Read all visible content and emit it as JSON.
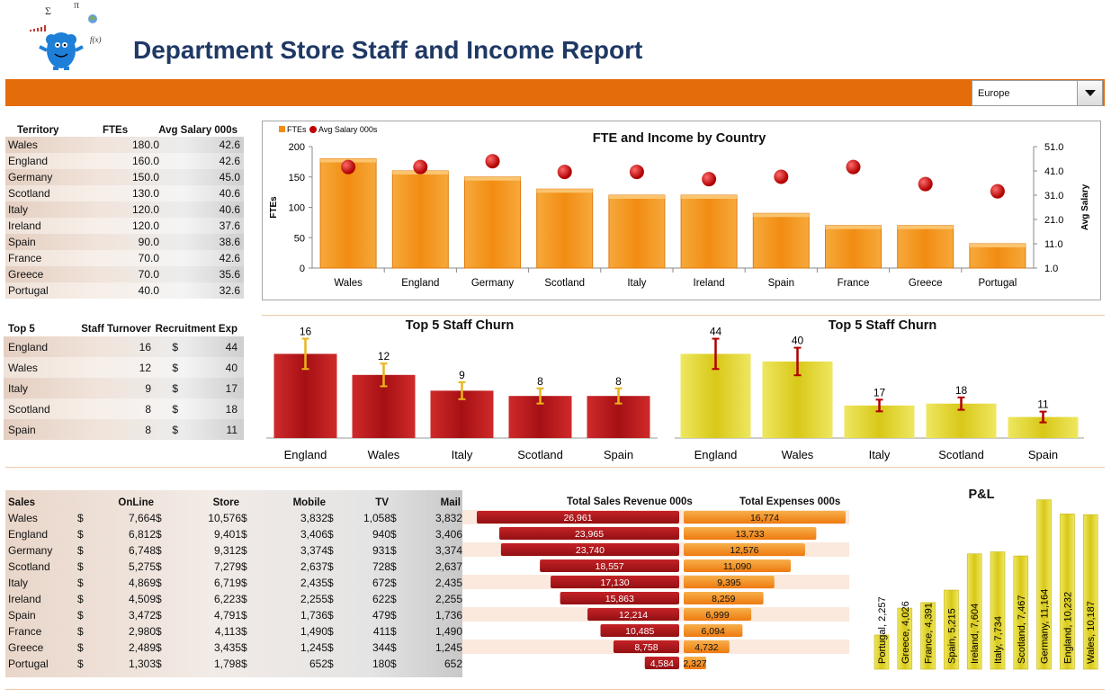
{
  "header": {
    "title": "Department Store Staff and Income Report"
  },
  "filter": {
    "selected": "Europe"
  },
  "territory_table": {
    "headers": [
      "Territory",
      "FTEs",
      "Avg Salary 000s"
    ],
    "rows": [
      [
        "Wales",
        "180.0",
        "42.6"
      ],
      [
        "England",
        "160.0",
        "42.6"
      ],
      [
        "Germany",
        "150.0",
        "45.0"
      ],
      [
        "Scotland",
        "130.0",
        "40.6"
      ],
      [
        "Italy",
        "120.0",
        "40.6"
      ],
      [
        "Ireland",
        "120.0",
        "37.6"
      ],
      [
        "Spain",
        "90.0",
        "38.6"
      ],
      [
        "France",
        "70.0",
        "42.6"
      ],
      [
        "Greece",
        "70.0",
        "35.6"
      ],
      [
        "Portugal",
        "40.0",
        "32.6"
      ]
    ]
  },
  "top5_table": {
    "headers": [
      "Top 5",
      "Staff Turnover",
      "Recruitment Exp"
    ],
    "currency": "$",
    "rows": [
      [
        "England",
        "16",
        "44"
      ],
      [
        "Wales",
        "12",
        "40"
      ],
      [
        "Italy",
        "9",
        "17"
      ],
      [
        "Scotland",
        "8",
        "18"
      ],
      [
        "Spain",
        "8",
        "11"
      ]
    ]
  },
  "sales_table": {
    "headers": [
      "Sales",
      "OnLine",
      "Store",
      "Mobile",
      "TV",
      "Mail"
    ],
    "currency": "$",
    "rows": [
      [
        "Wales",
        "7,664",
        "10,576",
        "3,832",
        "1,058",
        "3,832"
      ],
      [
        "England",
        "6,812",
        "9,401",
        "3,406",
        "940",
        "3,406"
      ],
      [
        "Germany",
        "6,748",
        "9,312",
        "3,374",
        "931",
        "3,374"
      ],
      [
        "Scotland",
        "5,275",
        "7,279",
        "2,637",
        "728",
        "2,637"
      ],
      [
        "Italy",
        "4,869",
        "6,719",
        "2,435",
        "672",
        "2,435"
      ],
      [
        "Ireland",
        "4,509",
        "6,223",
        "2,255",
        "622",
        "2,255"
      ],
      [
        "Spain",
        "3,472",
        "4,791",
        "1,736",
        "479",
        "1,736"
      ],
      [
        "France",
        "2,980",
        "4,113",
        "1,490",
        "411",
        "1,490"
      ],
      [
        "Greece",
        "2,489",
        "3,435",
        "1,245",
        "344",
        "1,245"
      ],
      [
        "Portugal",
        "1,303",
        "1,798",
        "652",
        "180",
        "652"
      ]
    ]
  },
  "colors": {
    "banner": "#e46c0a",
    "title": "#1f3864",
    "orange_bar": "#f08a10",
    "red_bar": "#b0141a",
    "yellow_bar": "#e0d020"
  },
  "chart_data": [
    {
      "type": "bar",
      "title": "FTE and  Income by Country",
      "legend": [
        "FTEs",
        "Avg Salary 000s"
      ],
      "legend_position": "top-left",
      "categories": [
        "Wales",
        "England",
        "Germany",
        "Scotland",
        "Italy",
        "Ireland",
        "Spain",
        "France",
        "Greece",
        "Portugal"
      ],
      "series": [
        {
          "name": "FTEs",
          "type": "bar",
          "axis": "left",
          "values": [
            180,
            160,
            150,
            130,
            120,
            120,
            90,
            70,
            70,
            40
          ]
        },
        {
          "name": "Avg Salary 000s",
          "type": "scatter",
          "axis": "right",
          "values": [
            42.6,
            42.6,
            45.0,
            40.6,
            40.6,
            37.6,
            38.6,
            42.6,
            35.6,
            32.6
          ]
        }
      ],
      "ylabel": "FTEs",
      "y2label": "Avg Salary",
      "yticks": [
        "0",
        "50",
        "100",
        "150",
        "200"
      ],
      "y2ticks": [
        "1.0",
        "11.0",
        "21.0",
        "31.0",
        "41.0",
        "51.0"
      ],
      "ylim": [
        0,
        200
      ],
      "y2lim": [
        1,
        51
      ],
      "grid": false
    },
    {
      "type": "bar",
      "title": "Top 5 Staff Churn",
      "categories": [
        "England",
        "Wales",
        "Italy",
        "Scotland",
        "Spain"
      ],
      "values": [
        16,
        12,
        9,
        8,
        8
      ],
      "data_labels": [
        "16",
        "12",
        "9",
        "8",
        "8"
      ],
      "error_bars": true,
      "ylim": [
        0,
        20
      ]
    },
    {
      "type": "bar",
      "title": "Top 5 Staff Churn",
      "categories": [
        "England",
        "Wales",
        "Italy",
        "Scotland",
        "Spain"
      ],
      "values": [
        44,
        40,
        17,
        18,
        11
      ],
      "data_labels": [
        "44",
        "40",
        "17",
        "18",
        "11"
      ],
      "error_bars": true,
      "ylim": [
        0,
        55
      ]
    },
    {
      "type": "bar",
      "orientation": "horizontal",
      "direction": "left",
      "title": "Total Sales Revenue 000s",
      "categories": [
        "Wales",
        "England",
        "Germany",
        "Scotland",
        "Italy",
        "Ireland",
        "Spain",
        "France",
        "Greece",
        "Portugal"
      ],
      "values": [
        26961,
        23965,
        23740,
        18557,
        17130,
        15863,
        12214,
        10485,
        8758,
        4584
      ],
      "data_labels": [
        "26,961",
        "23,965",
        "23,740",
        "18,557",
        "17,130",
        "15,863",
        "12,214",
        "10,485",
        "8,758",
        "4,584"
      ]
    },
    {
      "type": "bar",
      "orientation": "horizontal",
      "title": "Total Expenses 000s",
      "categories": [
        "Wales",
        "England",
        "Germany",
        "Scotland",
        "Italy",
        "Ireland",
        "Spain",
        "France",
        "Greece",
        "Portugal"
      ],
      "values": [
        16774,
        13733,
        12576,
        11090,
        9395,
        8259,
        6999,
        6094,
        4732,
        2327
      ],
      "data_labels": [
        "16,774",
        "13,733",
        "12,576",
        "11,090",
        "9,395",
        "8,259",
        "6,999",
        "6,094",
        "4,732",
        "2,327"
      ]
    },
    {
      "type": "bar",
      "title": "P&L",
      "categories": [
        "Portugal",
        "Greece",
        "France",
        "Spain",
        "Ireland",
        "Italy",
        "Scotland",
        "Germany",
        "England",
        "Wales"
      ],
      "values": [
        2257,
        4026,
        4391,
        5215,
        7604,
        7734,
        7467,
        11164,
        10232,
        10187
      ],
      "data_labels": [
        "Portugal, 2,257",
        "Greece, 4,026",
        "France, 4,391",
        "Spain, 5,215",
        "Ireland, 7,604",
        "Italy, 7,734",
        "Scotland, 7,467",
        "Germany, 11,164",
        "England, 10,232",
        "Wales, 10,187"
      ],
      "ylim": [
        0,
        11500
      ]
    }
  ]
}
